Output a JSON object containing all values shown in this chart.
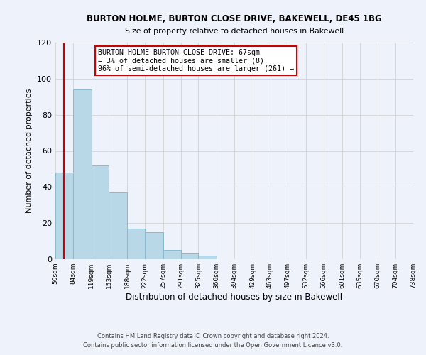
{
  "title": "BURTON HOLME, BURTON CLOSE DRIVE, BAKEWELL, DE45 1BG",
  "subtitle": "Size of property relative to detached houses in Bakewell",
  "xlabel": "Distribution of detached houses by size in Bakewell",
  "ylabel": "Number of detached properties",
  "bar_left_edges": [
    50,
    84,
    119,
    153,
    188,
    222,
    257,
    291,
    325,
    360,
    394,
    429,
    463,
    497,
    532,
    566,
    601,
    635,
    670,
    704
  ],
  "bar_widths": [
    34,
    35,
    34,
    35,
    34,
    35,
    34,
    34,
    35,
    34,
    35,
    34,
    34,
    35,
    34,
    35,
    34,
    35,
    34,
    34
  ],
  "bar_heights": [
    48,
    94,
    52,
    37,
    17,
    15,
    5,
    3,
    2,
    0,
    0,
    0,
    0,
    0,
    0,
    0,
    0,
    0,
    0,
    0
  ],
  "bar_color": "#b8d8e8",
  "bar_edgecolor": "#8ab8cc",
  "xlim_left": 50,
  "xlim_right": 738,
  "ylim_top": 120,
  "yticks": [
    0,
    20,
    40,
    60,
    80,
    100,
    120
  ],
  "xtick_labels": [
    "50sqm",
    "84sqm",
    "119sqm",
    "153sqm",
    "188sqm",
    "222sqm",
    "257sqm",
    "291sqm",
    "325sqm",
    "360sqm",
    "394sqm",
    "429sqm",
    "463sqm",
    "497sqm",
    "532sqm",
    "566sqm",
    "601sqm",
    "635sqm",
    "670sqm",
    "704sqm",
    "738sqm"
  ],
  "xtick_positions": [
    50,
    84,
    119,
    153,
    188,
    222,
    257,
    291,
    325,
    360,
    394,
    429,
    463,
    497,
    532,
    566,
    601,
    635,
    670,
    704,
    738
  ],
  "property_size": 67,
  "annotation_title": "BURTON HOLME BURTON CLOSE DRIVE: 67sqm",
  "annotation_line1": "← 3% of detached houses are smaller (8)",
  "annotation_line2": "96% of semi-detached houses are larger (261) →",
  "annotation_box_color": "#ffffff",
  "annotation_box_edgecolor": "#cc0000",
  "background_color": "#eef2fa",
  "grid_color": "#cccccc",
  "footer_line1": "Contains HM Land Registry data © Crown copyright and database right 2024.",
  "footer_line2": "Contains public sector information licensed under the Open Government Licence v3.0."
}
